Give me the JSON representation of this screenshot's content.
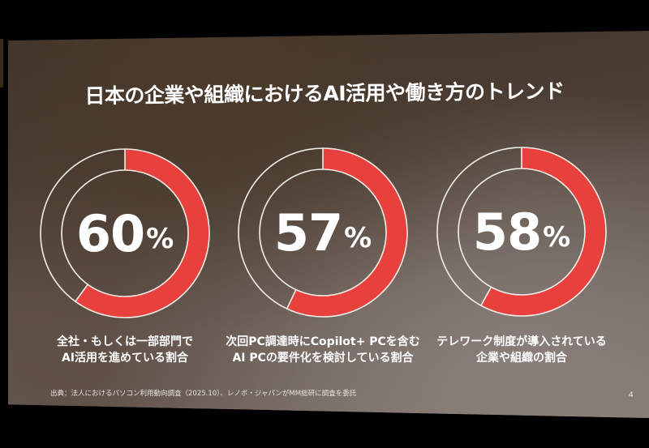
{
  "slide": {
    "title": "日本の企業や組織におけるAI活用や働き方のトレンド",
    "source_note": "出典：法人におけるパソコン利用動向調査（2025.10）、レノボ・ジャパンがMM総研に調査を委託",
    "page_number": "4",
    "colors": {
      "accent": "#e8403c",
      "ring_outline": "#f2efe8",
      "text": "#ffffff"
    },
    "stats": [
      {
        "value": "60",
        "unit": "%",
        "caption_line1": "全社・もしくは一部部門で",
        "caption_line2": "AI活用を進めている割合"
      },
      {
        "value": "57",
        "unit": "%",
        "caption_line1": "次回PC調達時にCopilot+ PCを含む",
        "caption_line2": "AI PCの要件化を検討している割合"
      },
      {
        "value": "58",
        "unit": "%",
        "caption_line1": "テレワーク制度が導入されている",
        "caption_line2": "企業や組織の割合"
      }
    ]
  },
  "chart_data": {
    "type": "pie",
    "subtype": "donut",
    "title": "日本の企業や組織におけるAI活用や働き方のトレンド",
    "categories": [
      "全社・もしくは一部部門でAI活用を進めている割合",
      "次回PC調達時にCopilot+ PCを含むAI PCの要件化を検討している割合",
      "テレワーク制度が導入されている企業や組織の割合"
    ],
    "values": [
      60,
      57,
      58
    ],
    "unit": "%",
    "max": 100,
    "legend": "none",
    "source": "法人におけるパソコン利用動向調査（2025.10）、レノボ・ジャパンがMM総研に調査を委託"
  }
}
